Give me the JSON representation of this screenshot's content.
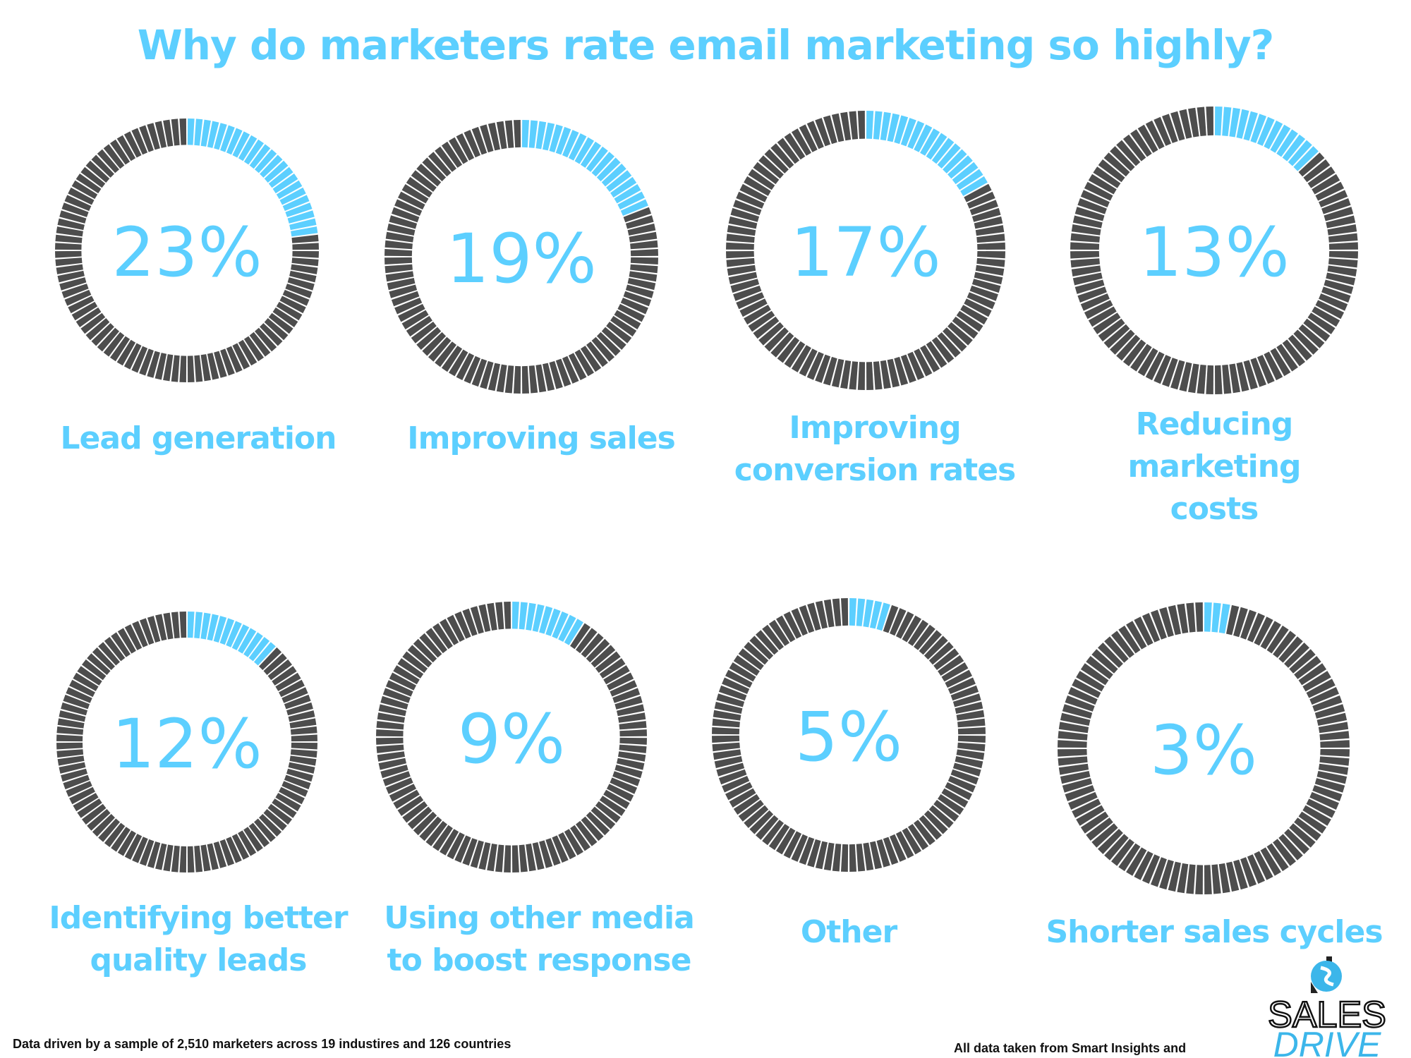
{
  "title": "Why do marketers rate email marketing so highly?",
  "colors": {
    "accent": "#5ccfff",
    "segment_empty": "#4d4d4d",
    "background": "#ffffff"
  },
  "chart_data": {
    "type": "donut-gauge",
    "title": "Why do marketers rate email marketing so highly?",
    "segments_per_ring": 100,
    "categories": [
      "Lead generation",
      "Improving sales",
      "Improving conversion rates",
      "Reducing marketing costs",
      "Identifying better quality leads",
      "Using other media to boost response",
      "Other",
      "Shorter sales cycles"
    ],
    "values": [
      23,
      19,
      17,
      13,
      12,
      9,
      5,
      3
    ],
    "value_labels": [
      "23%",
      "19%",
      "17%",
      "13%",
      "12%",
      "9%",
      "5%",
      "3%"
    ],
    "label_lines": [
      [
        "Lead generation"
      ],
      [
        "Improving sales"
      ],
      [
        "Improving",
        "conversion rates"
      ],
      [
        "Reducing marketing",
        "costs"
      ],
      [
        "Identifying better",
        "quality leads"
      ],
      [
        "Using other media",
        "to boost response"
      ],
      [
        "Other"
      ],
      [
        "Shorter sales cycles"
      ]
    ],
    "unit": "%"
  },
  "footer": {
    "sample_note": "Data driven by a sample of 2,510 marketers across 19 industires and 126 countries",
    "source_note": "All data taken from Smart Insights and"
  },
  "logo": {
    "line1": "SALES",
    "line2": "DRIVE"
  }
}
